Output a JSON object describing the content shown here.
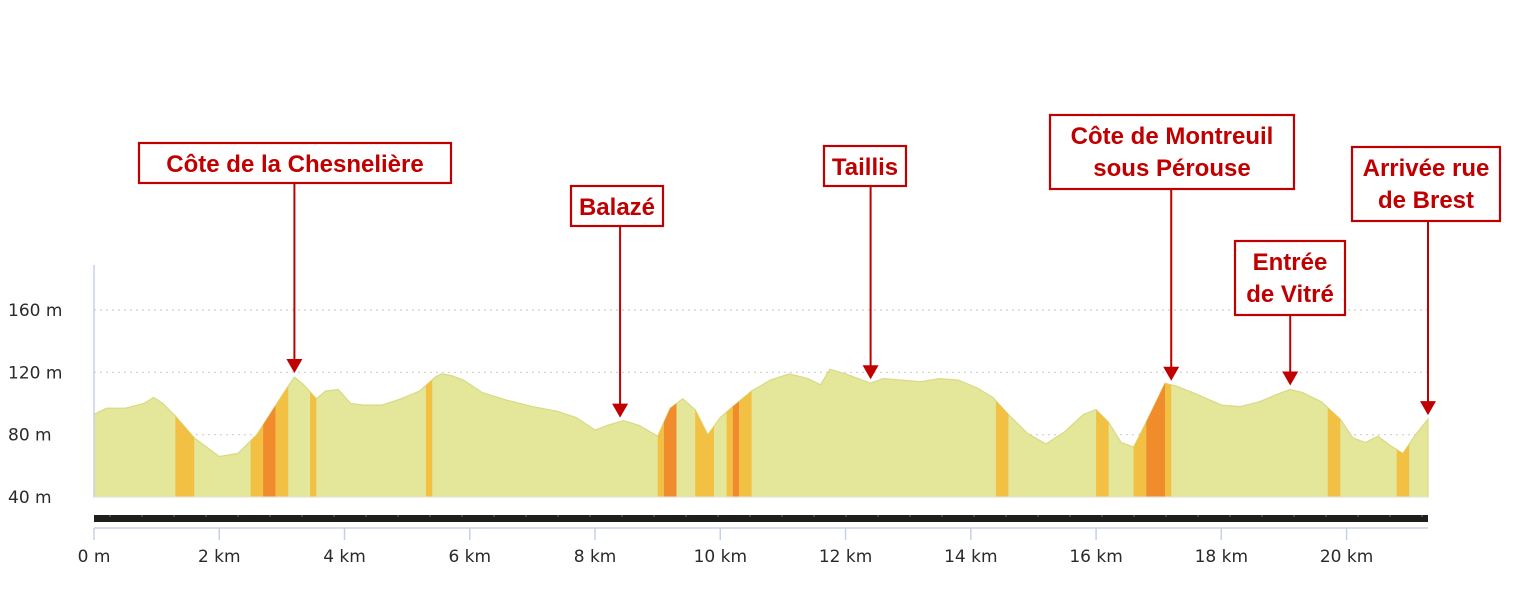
{
  "chart_data": {
    "type": "area",
    "title": "",
    "xlabel": "",
    "ylabel": "",
    "x_unit": "km",
    "y_unit": "m",
    "xlim": [
      0,
      21.3
    ],
    "ylim": [
      38,
      200
    ],
    "grid": true,
    "x_ticks": [
      {
        "value": 0,
        "label": "0 m"
      },
      {
        "value": 2,
        "label": "2 km"
      },
      {
        "value": 4,
        "label": "4 km"
      },
      {
        "value": 6,
        "label": "6 km"
      },
      {
        "value": 8,
        "label": "8 km"
      },
      {
        "value": 10,
        "label": "10 km"
      },
      {
        "value": 12,
        "label": "12 km"
      },
      {
        "value": 14,
        "label": "14 km"
      },
      {
        "value": 16,
        "label": "16 km"
      },
      {
        "value": 18,
        "label": "18 km"
      },
      {
        "value": 20,
        "label": "20 km"
      }
    ],
    "y_ticks": [
      {
        "value": 40,
        "label": "40 m"
      },
      {
        "value": 80,
        "label": "80 m"
      },
      {
        "value": 120,
        "label": "120 m"
      },
      {
        "value": 160,
        "label": "160 m"
      }
    ],
    "profile": {
      "x": [
        0,
        0.2,
        0.5,
        0.8,
        0.95,
        1.1,
        1.3,
        1.6,
        2.0,
        2.3,
        2.6,
        3.0,
        3.2,
        3.35,
        3.55,
        3.7,
        3.9,
        4.1,
        4.3,
        4.6,
        4.9,
        5.2,
        5.45,
        5.55,
        5.7,
        5.9,
        6.2,
        6.6,
        7.0,
        7.4,
        7.7,
        8.0,
        8.2,
        8.45,
        8.7,
        9.0,
        9.2,
        9.4,
        9.6,
        9.8,
        10.0,
        10.2,
        10.5,
        10.8,
        11.1,
        11.4,
        11.6,
        11.75,
        12.0,
        12.2,
        12.4,
        12.6,
        12.9,
        13.2,
        13.5,
        13.8,
        14.1,
        14.35,
        14.6,
        14.9,
        15.2,
        15.5,
        15.8,
        16.0,
        16.2,
        16.4,
        16.6,
        16.8,
        17.1,
        17.3,
        17.6,
        18.0,
        18.3,
        18.6,
        18.9,
        19.1,
        19.3,
        19.6,
        19.9,
        20.1,
        20.3,
        20.5,
        20.7,
        20.9,
        21.1,
        21.3
      ],
      "y": [
        93,
        97,
        97,
        100,
        104,
        100,
        92,
        78,
        66,
        68,
        80,
        105,
        117,
        112,
        103,
        108,
        109,
        100,
        99,
        99,
        103,
        108,
        117,
        119,
        118,
        115,
        107,
        102,
        98,
        95,
        91,
        83,
        86,
        89,
        86,
        79,
        97,
        103,
        96,
        80,
        91,
        98,
        108,
        115,
        119,
        116,
        112,
        122,
        119,
        116,
        113,
        116,
        115,
        114,
        116,
        115,
        110,
        104,
        93,
        81,
        74,
        82,
        93,
        96,
        88,
        75,
        72,
        88,
        113,
        111,
        106,
        99,
        98,
        101,
        106,
        109,
        107,
        101,
        90,
        78,
        75,
        79,
        73,
        68,
        80,
        90
      ]
    },
    "bands": [
      {
        "x0": 1.3,
        "x1": 1.6,
        "color": "#f2c144"
      },
      {
        "x0": 2.5,
        "x1": 2.7,
        "color": "#f2c144"
      },
      {
        "x0": 2.7,
        "x1": 2.9,
        "color": "#f08c2c"
      },
      {
        "x0": 2.9,
        "x1": 3.1,
        "color": "#f2c144"
      },
      {
        "x0": 3.45,
        "x1": 3.55,
        "color": "#f2c144"
      },
      {
        "x0": 5.3,
        "x1": 5.4,
        "color": "#f2c144"
      },
      {
        "x0": 9.0,
        "x1": 9.1,
        "color": "#f2c144"
      },
      {
        "x0": 9.1,
        "x1": 9.3,
        "color": "#f08c2c"
      },
      {
        "x0": 9.6,
        "x1": 9.9,
        "color": "#f2c144"
      },
      {
        "x0": 10.1,
        "x1": 10.2,
        "color": "#f2c144"
      },
      {
        "x0": 10.2,
        "x1": 10.3,
        "color": "#f08c2c"
      },
      {
        "x0": 10.3,
        "x1": 10.5,
        "color": "#f2c144"
      },
      {
        "x0": 14.4,
        "x1": 14.6,
        "color": "#f2c144"
      },
      {
        "x0": 16.0,
        "x1": 16.2,
        "color": "#f2c144"
      },
      {
        "x0": 16.6,
        "x1": 16.8,
        "color": "#f2c144"
      },
      {
        "x0": 16.8,
        "x1": 17.1,
        "color": "#f08c2c"
      },
      {
        "x0": 17.1,
        "x1": 17.2,
        "color": "#f2c144"
      },
      {
        "x0": 19.7,
        "x1": 19.9,
        "color": "#f2c144"
      },
      {
        "x0": 20.8,
        "x1": 21.0,
        "color": "#f2c144"
      }
    ],
    "annotations": [
      {
        "lines": [
          "Côte de la Chesnelière"
        ],
        "x": 3.2
      },
      {
        "lines": [
          "Balazé"
        ],
        "x": 8.4
      },
      {
        "lines": [
          "Taillis"
        ],
        "x": 12.4
      },
      {
        "lines": [
          "Côte de Montreuil",
          "sous Pérouse"
        ],
        "x": 17.2
      },
      {
        "lines": [
          "Entrée",
          "de Vitré"
        ],
        "x": 19.1
      },
      {
        "lines": [
          "Arrivée rue",
          "de Brest"
        ],
        "x": 21.3
      }
    ],
    "colors": {
      "fill": "#e4e69a",
      "stroke": "#d8da86",
      "steep": "#f2c144",
      "steeper": "#f08c2c",
      "annotation": "#c00000",
      "axis": "#c8d0e8",
      "grid": "#cfcfcf",
      "bar": "#1e1e1e"
    }
  }
}
